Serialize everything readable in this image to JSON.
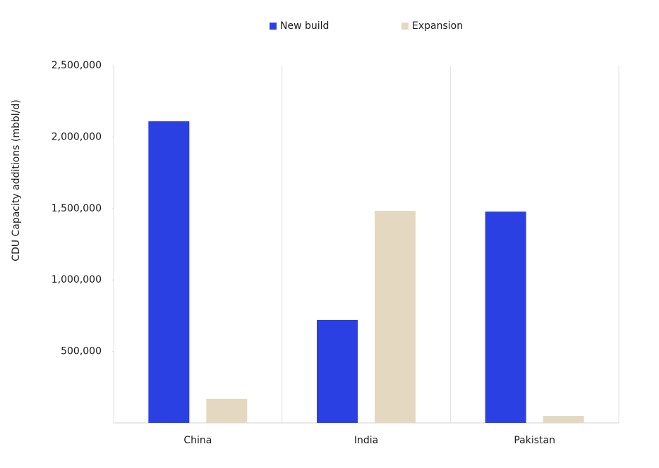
{
  "chart_data": {
    "type": "bar",
    "y_axis_label": "CDU Capacity additions (mbbl/d)",
    "categories": [
      "China",
      "India",
      "Pakistan"
    ],
    "series": [
      {
        "name": "New build",
        "color": "#2b40e3",
        "values": [
          2110000,
          720000,
          1478000
        ]
      },
      {
        "name": "Expansion",
        "color": "#e5d8c1",
        "values": [
          168000,
          1484000,
          49000
        ]
      }
    ],
    "ylim": [
      0,
      2500000
    ],
    "yticks": [
      {
        "value": 500000,
        "label": "500,000"
      },
      {
        "value": 1000000,
        "label": "1,000,000"
      },
      {
        "value": 1500000,
        "label": "1,500,000"
      },
      {
        "value": 2000000,
        "label": "2,000,000"
      },
      {
        "value": 2500000,
        "label": "2,500,000"
      }
    ],
    "legend": "top"
  }
}
